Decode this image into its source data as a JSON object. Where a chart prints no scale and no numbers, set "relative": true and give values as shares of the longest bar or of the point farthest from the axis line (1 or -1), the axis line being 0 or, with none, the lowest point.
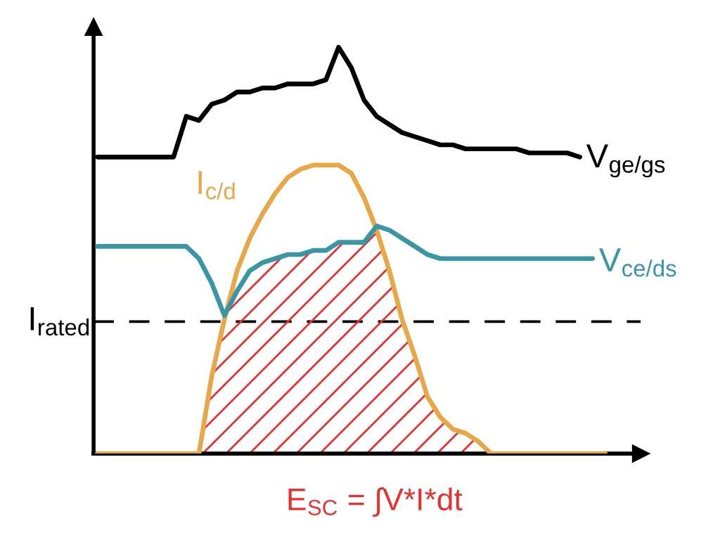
{
  "chart_data": {
    "type": "line",
    "relative": true,
    "categories": [
      null,
      null,
      null,
      null,
      null,
      null,
      null,
      null,
      null,
      null,
      null,
      null,
      null,
      null,
      null,
      null,
      null,
      null,
      null,
      null,
      null,
      null,
      null,
      null,
      null,
      null,
      null,
      null,
      null,
      null,
      null,
      null,
      null,
      null,
      null,
      null,
      null,
      null,
      null,
      null,
      null,
      null
    ],
    "series": [
      {
        "name": "V$_{ge/gs}$",
        "color": "#000000",
        "values": [
          0.73,
          0.73,
          0.73,
          0.73,
          0.73,
          0.73,
          0.73,
          0.83,
          0.82,
          0.86,
          0.87,
          0.89,
          0.89,
          0.9,
          0.9,
          0.91,
          0.91,
          0.91,
          0.92,
          1.0,
          0.95,
          0.87,
          0.83,
          0.81,
          0.79,
          0.78,
          0.77,
          0.76,
          0.76,
          0.75,
          0.75,
          0.75,
          0.75,
          0.75,
          0.74,
          0.74,
          0.74,
          0.74,
          0.73,
          null,
          null,
          null
        ]
      },
      {
        "name": "I$_{c/d}$",
        "color": "#e8a84a",
        "values": [
          0,
          0,
          0,
          0,
          0,
          0,
          0,
          0,
          0,
          0.19,
          0.33,
          0.45,
          0.53,
          0.59,
          0.64,
          0.68,
          0.7,
          0.71,
          0.71,
          0.71,
          0.69,
          0.63,
          0.55,
          0.45,
          0.33,
          0.24,
          0.14,
          0.09,
          0.06,
          0.05,
          0.03,
          0,
          0,
          0,
          0,
          0,
          0,
          0,
          0,
          0,
          0,
          null
        ]
      },
      {
        "name": "V$_{ce/ds}$",
        "color": "#3a95a5",
        "values": [
          0.51,
          0.51,
          0.51,
          0.51,
          0.51,
          0.51,
          0.51,
          0.51,
          0.48,
          0.42,
          0.34,
          0.4,
          0.45,
          0.47,
          0.48,
          0.49,
          0.49,
          0.5,
          0.5,
          0.52,
          0.52,
          0.52,
          0.56,
          0.55,
          0.53,
          0.51,
          0.49,
          0.48,
          0.48,
          0.48,
          0.48,
          0.48,
          0.48,
          0.48,
          0.48,
          0.48,
          0.48,
          0.48,
          0.48,
          0.48,
          null,
          null
        ]
      },
      {
        "type": "area",
        "color": "#e8312f",
        "values": [
          null,
          null,
          null,
          null,
          null,
          null,
          null,
          null,
          0,
          0.19,
          0.33,
          0.4,
          0.45,
          0.47,
          0.48,
          0.49,
          0.49,
          0.5,
          0.5,
          0.52,
          0.52,
          0.52,
          0.55,
          0.45,
          0.33,
          0.24,
          0.14,
          0.09,
          0.06,
          0.05,
          0.03,
          0,
          null,
          null,
          null,
          null,
          null,
          null,
          null,
          null,
          null,
          null
        ]
      }
    ],
    "ref_lines": [
      {
        "axis": "y",
        "value": 0.325,
        "label": "I$_{rated}$",
        "color": "#000000",
        "line_style": "dashed"
      }
    ],
    "annotations": [
      "E$_{SC}$ = ∫V*I*dt"
    ],
    "legend": false,
    "grid": false
  }
}
